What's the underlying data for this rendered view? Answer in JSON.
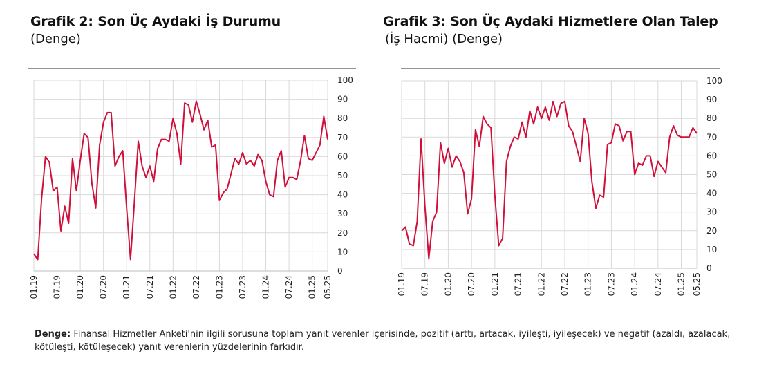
{
  "chart_data": [
    {
      "type": "line",
      "title": "Grafik 2: Son Üç Aydaki İş Durumu",
      "subtitle": "(Denge)",
      "x_tick_labels": [
        "01.19",
        "07.19",
        "01.20",
        "07.20",
        "01.21",
        "07.21",
        "01.22",
        "07.22",
        "01.23",
        "07.23",
        "01.24",
        "07.24",
        "01.25",
        "05.25"
      ],
      "y_tick_labels": [
        "0",
        "10",
        "20",
        "30",
        "40",
        "50",
        "60",
        "70",
        "80",
        "90",
        "100"
      ],
      "ylim": [
        0,
        100
      ],
      "grid": true,
      "color": "#d0103a",
      "series": [
        {
          "values": [
            9,
            6,
            38,
            60,
            57,
            42,
            44,
            21,
            34,
            25,
            59,
            42,
            58,
            72,
            70,
            46,
            33,
            66,
            78,
            83,
            83,
            55,
            60,
            63,
            33,
            6,
            36,
            68,
            55,
            49,
            55,
            47,
            64,
            69,
            69,
            68,
            80,
            72,
            56,
            88,
            87,
            78,
            89,
            82,
            74,
            79,
            65,
            66,
            37,
            41,
            43,
            51,
            59,
            56,
            62,
            56,
            58,
            55,
            61,
            58,
            47,
            40,
            39,
            58,
            63,
            44,
            49,
            49,
            48,
            58,
            71,
            59,
            58,
            62,
            66,
            81,
            69
          ]
        }
      ]
    },
    {
      "type": "line",
      "title": "Grafik 3: Son Üç Aydaki Hizmetlere Olan Talep",
      "subtitle": "(İş Hacmi) (Denge)",
      "x_tick_labels": [
        "01.19",
        "07.19",
        "01.20",
        "07.20",
        "01.21",
        "07.21",
        "01.22",
        "07.22",
        "01.23",
        "07.23",
        "01.24",
        "07.24",
        "01.25",
        "05.25"
      ],
      "y_tick_labels": [
        "0",
        "10",
        "20",
        "30",
        "40",
        "50",
        "60",
        "70",
        "80",
        "90",
        "100"
      ],
      "ylim": [
        0,
        100
      ],
      "grid": true,
      "color": "#d0103a",
      "series": [
        {
          "values": [
            20,
            22,
            13,
            12,
            25,
            69,
            33,
            5,
            25,
            30,
            67,
            56,
            64,
            54,
            60,
            57,
            51,
            29,
            37,
            74,
            65,
            81,
            77,
            75,
            39,
            12,
            16,
            57,
            65,
            70,
            69,
            78,
            70,
            84,
            77,
            86,
            80,
            86,
            79,
            89,
            81,
            88,
            89,
            76,
            73,
            65,
            57,
            80,
            72,
            46,
            32,
            39,
            38,
            66,
            67,
            77,
            76,
            68,
            73,
            73,
            50,
            56,
            55,
            60,
            60,
            49,
            57,
            54,
            51,
            70,
            76,
            71,
            70,
            70,
            70,
            75,
            72
          ]
        }
      ]
    }
  ],
  "footnote": {
    "term": "Denge:",
    "text": " Finansal Hizmetler Anketi'nin ilgili sorusuna toplam yanıt verenler içerisinde, pozitif (arttı, artacak, iyileşti, iyileşecek) ve negatif (azaldı, azalacak, kötüleşti, kötüleşecek) yanıt verenlerin yüzdelerinin farkıdır."
  }
}
